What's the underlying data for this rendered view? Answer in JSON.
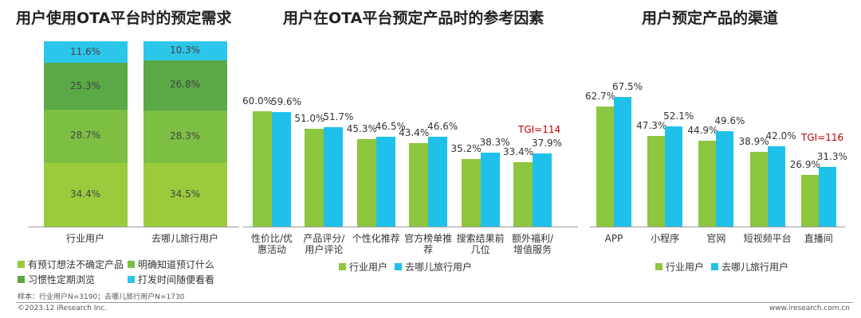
{
  "chart_data": [
    {
      "type": "stacked_bar",
      "title": "用户使用OTA平台时的预定需求",
      "categories": [
        "行业用户",
        "去哪儿旅行用户"
      ],
      "series": [
        {
          "name": "有预订想法不确定产品",
          "color": "#9bcb3c",
          "values": [
            34.4,
            34.5
          ],
          "value_labels": [
            "34.4%",
            "34.5%"
          ]
        },
        {
          "name": "明确知道预订什么",
          "color": "#7cbf43",
          "values": [
            28.7,
            28.3
          ],
          "value_labels": [
            "28.7%",
            "28.3%"
          ]
        },
        {
          "name": "习惯性定期浏览",
          "color": "#5aa846",
          "values": [
            25.3,
            26.8
          ],
          "value_labels": [
            "25.3%",
            "26.8%"
          ]
        },
        {
          "name": "打发时间随便看看",
          "color": "#2cc6ea",
          "values": [
            11.6,
            10.3
          ],
          "value_labels": [
            "11.6%",
            "10.3%"
          ]
        }
      ]
    },
    {
      "type": "bar",
      "title": "用户在OTA平台预定产品时的参考因素",
      "categories": [
        "性价比/优惠活动",
        "产品评分/用户评论",
        "个性化推荐",
        "官方榜单推荐",
        "搜索结果前几位",
        "额外福利/增值服务"
      ],
      "series": [
        {
          "name": "行业用户",
          "color": "#8dc63f",
          "values": [
            60.0,
            51.0,
            45.3,
            43.4,
            35.2,
            33.4
          ],
          "value_labels": [
            "60.0%",
            "51.0%",
            "45.3%",
            "43.4%",
            "35.2%",
            "33.4%"
          ]
        },
        {
          "name": "去哪儿旅行用户",
          "color": "#1fc1ea",
          "values": [
            59.6,
            51.7,
            46.5,
            46.6,
            38.3,
            37.9
          ],
          "value_labels": [
            "59.6%",
            "51.7%",
            "46.5%",
            "46.6%",
            "38.3%",
            "37.9%"
          ]
        }
      ],
      "annotation": "TGI=114"
    },
    {
      "type": "bar",
      "title": "用户预定产品的渠道",
      "categories": [
        "APP",
        "小程序",
        "官网",
        "短视频平台",
        "直播间"
      ],
      "series": [
        {
          "name": "行业用户",
          "color": "#8dc63f",
          "values": [
            62.7,
            47.3,
            44.9,
            38.9,
            26.9
          ],
          "value_labels": [
            "62.7%",
            "47.3%",
            "44.9%",
            "38.9%",
            "26.9%"
          ]
        },
        {
          "name": "去哪儿旅行用户",
          "color": "#1fc1ea",
          "values": [
            67.5,
            52.1,
            49.6,
            42.0,
            31.3
          ],
          "value_labels": [
            "67.5%",
            "52.1%",
            "49.6%",
            "42.0%",
            "31.3%"
          ]
        }
      ],
      "annotation": "TGI=116"
    }
  ],
  "footer": {
    "sample": "样本：行业用户N=3190；去哪儿旅行用户N=1730",
    "copyright": "©2023.12 iResearch Inc.",
    "website": "www.iresearch.com.cn"
  }
}
